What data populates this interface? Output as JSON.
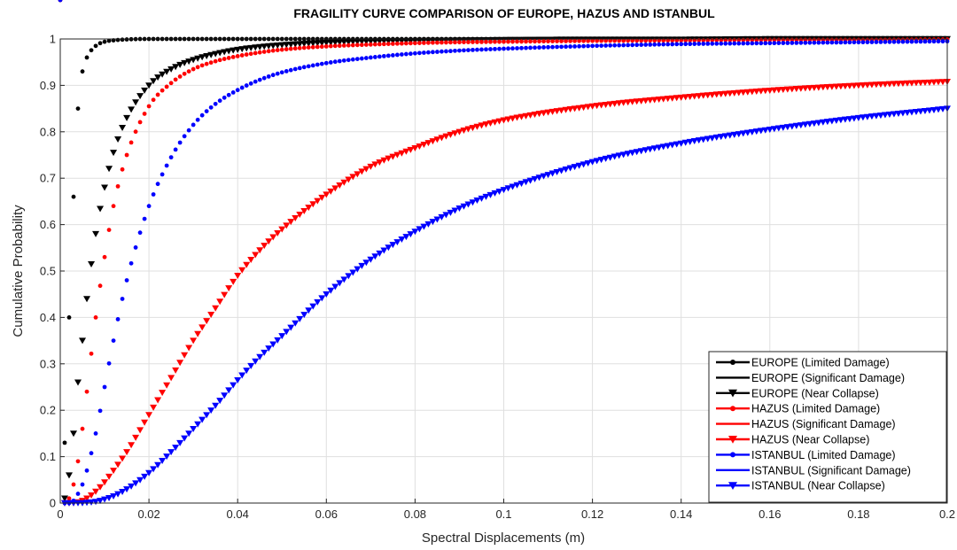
{
  "chart_data": {
    "type": "line",
    "title": "FRAGILITY CURVE COMPARISON OF EUROPE, HAZUS AND ISTANBUL",
    "xlabel": "Spectral Displacements (m)",
    "ylabel": "Cumulative Probability",
    "xlim": [
      0,
      0.2
    ],
    "ylim": [
      0,
      1
    ],
    "xticks": [
      0,
      0.02,
      0.04,
      0.06,
      0.08,
      0.1,
      0.12,
      0.14,
      0.16,
      0.18,
      0.2
    ],
    "xtick_labels": [
      "0",
      "0.02",
      "0.04",
      "0.06",
      "0.08",
      "0.1",
      "0.12",
      "0.14",
      "0.16",
      "0.18",
      "0.2"
    ],
    "yticks": [
      0,
      0.1,
      0.2,
      0.3,
      0.4,
      0.5,
      0.6,
      0.7,
      0.8,
      0.9,
      1
    ],
    "ytick_labels": [
      "0",
      "0.1",
      "0.2",
      "0.3",
      "0.4",
      "0.5",
      "0.6",
      "0.7",
      "0.8",
      "0.9",
      "1"
    ],
    "grid": true,
    "legend_position": "bottom-right",
    "x": [
      0.001,
      0.002,
      0.003,
      0.004,
      0.005,
      0.006,
      0.008,
      0.01,
      0.012,
      0.015,
      0.02,
      0.025,
      0.03,
      0.035,
      0.04,
      0.045,
      0.05,
      0.06,
      0.07,
      0.08,
      0.09,
      0.1,
      0.12,
      0.14,
      0.16,
      0.18,
      0.2
    ],
    "series": [
      {
        "name": "EUROPE (Limited Damage)",
        "color": "#000000",
        "marker": "dot",
        "values": [
          0.13,
          0.4,
          0.66,
          0.85,
          0.93,
          0.96,
          0.985,
          0.994,
          0.997,
          0.999,
          1.0,
          1.0,
          1.0,
          1.0,
          1.0,
          1.0,
          1.0,
          1.0,
          1.0,
          1.0,
          1.0,
          1.0,
          1.0,
          1.0,
          1.0,
          1.0,
          1.0
        ]
      },
      {
        "name": "EUROPE (Significant Damage)",
        "color": "#000000",
        "marker": "none",
        "values": [
          0.05,
          0.2,
          0.38,
          0.55,
          0.67,
          0.76,
          0.86,
          0.915,
          0.945,
          0.965,
          0.982,
          0.989,
          0.993,
          0.995,
          0.996,
          0.997,
          0.998,
          0.999,
          0.999,
          0.9995,
          1.0,
          1.0,
          1.0,
          1.0,
          1.0,
          1.0,
          1.0
        ]
      },
      {
        "name": "EUROPE (Near Collapse)",
        "color": "#000000",
        "marker": "triangle-down",
        "values": [
          0.01,
          0.06,
          0.15,
          0.26,
          0.35,
          0.44,
          0.58,
          0.68,
          0.755,
          0.83,
          0.9,
          0.935,
          0.955,
          0.968,
          0.977,
          0.983,
          0.987,
          0.992,
          0.995,
          0.996,
          0.997,
          0.998,
          0.999,
          0.999,
          1.0,
          1.0,
          1.0
        ]
      },
      {
        "name": "HAZUS (Limited Damage)",
        "color": "#ff0000",
        "marker": "dot",
        "values": [
          0.0,
          0.01,
          0.04,
          0.09,
          0.16,
          0.24,
          0.4,
          0.53,
          0.64,
          0.75,
          0.855,
          0.905,
          0.935,
          0.952,
          0.963,
          0.971,
          0.977,
          0.984,
          0.988,
          0.991,
          0.993,
          0.994,
          0.996,
          0.997,
          0.998,
          0.998,
          0.999
        ]
      },
      {
        "name": "HAZUS (Significant Damage)",
        "color": "#ff0000",
        "marker": "none",
        "values": [
          0.0,
          0.0,
          0.005,
          0.015,
          0.03,
          0.05,
          0.1,
          0.16,
          0.22,
          0.305,
          0.42,
          0.52,
          0.595,
          0.655,
          0.7,
          0.74,
          0.77,
          0.815,
          0.85,
          0.87,
          0.888,
          0.905,
          0.928,
          0.944,
          0.956,
          0.966,
          0.973
        ]
      },
      {
        "name": "HAZUS (Near Collapse)",
        "color": "#ff0000",
        "marker": "triangle-down",
        "values": [
          0.0,
          0.0,
          0.0,
          0.002,
          0.005,
          0.01,
          0.025,
          0.045,
          0.07,
          0.11,
          0.19,
          0.27,
          0.35,
          0.42,
          0.49,
          0.545,
          0.59,
          0.665,
          0.725,
          0.765,
          0.8,
          0.825,
          0.855,
          0.874,
          0.889,
          0.9,
          0.908
        ]
      },
      {
        "name": "ISTANBUL (Limited Damage)",
        "color": "#0000ff",
        "marker": "dot",
        "values": [
          0.0,
          0.0,
          0.005,
          0.02,
          0.04,
          0.07,
          0.15,
          0.25,
          0.35,
          0.48,
          0.64,
          0.745,
          0.815,
          0.86,
          0.89,
          0.912,
          0.928,
          0.948,
          0.96,
          0.969,
          0.975,
          0.979,
          0.985,
          0.989,
          0.991,
          0.993,
          0.995
        ]
      },
      {
        "name": "ISTANBUL (Significant Damage)",
        "color": "#0000ff",
        "marker": "none",
        "values": [
          0.0,
          0.0,
          0.0,
          0.001,
          0.003,
          0.006,
          0.017,
          0.035,
          0.06,
          0.1,
          0.18,
          0.265,
          0.35,
          0.425,
          0.49,
          0.55,
          0.6,
          0.68,
          0.735,
          0.78,
          0.815,
          0.84,
          0.88,
          0.905,
          0.925,
          0.94,
          0.95
        ]
      },
      {
        "name": "ISTANBUL (Near Collapse)",
        "color": "#0000ff",
        "marker": "triangle-down",
        "values": [
          0.0,
          0.0,
          0.0,
          0.0,
          0.0,
          0.001,
          0.003,
          0.008,
          0.015,
          0.03,
          0.065,
          0.11,
          0.16,
          0.21,
          0.265,
          0.315,
          0.36,
          0.45,
          0.525,
          0.585,
          0.635,
          0.675,
          0.735,
          0.775,
          0.805,
          0.83,
          0.85
        ]
      }
    ]
  }
}
